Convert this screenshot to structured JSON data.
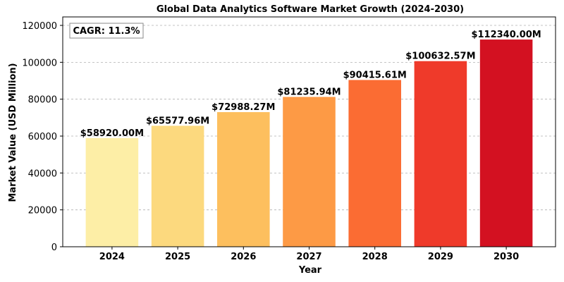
{
  "chart_data": {
    "type": "bar",
    "title": "Global Data Analytics Software Market Growth (2024-2030)",
    "x_label": "Year",
    "y_label": "Market Value (USD Million)",
    "annotation": "CAGR: 11.3%",
    "categories": [
      "2024",
      "2025",
      "2026",
      "2027",
      "2028",
      "2029",
      "2030"
    ],
    "values": [
      58920.0,
      65577.96,
      72988.27,
      81235.94,
      90415.61,
      100632.57,
      112340.0
    ],
    "value_labels": [
      "$58920.00M",
      "$65577.96M",
      "$72988.27M",
      "$81235.94M",
      "$90415.61M",
      "$100632.57M",
      "$112340.00M"
    ],
    "colors": [
      "#fdeea6",
      "#fcd97e",
      "#fdbf5e",
      "#fd9a45",
      "#fb6c33",
      "#ef3a2a",
      "#d31121"
    ],
    "ylim": [
      0,
      124600
    ],
    "yticks": [
      0,
      20000,
      40000,
      60000,
      80000,
      100000,
      120000
    ],
    "grid": true
  }
}
